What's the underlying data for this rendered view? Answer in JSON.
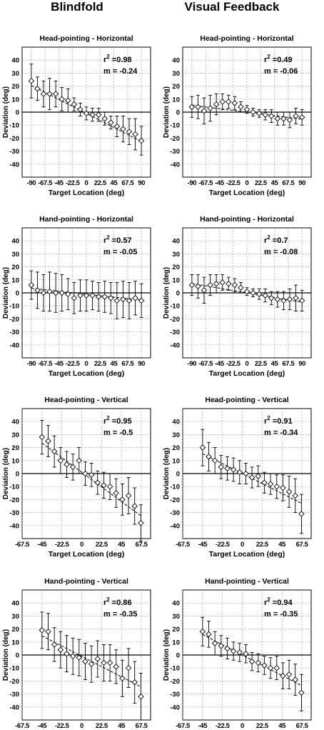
{
  "headers": {
    "left": "Blindfold",
    "right": "Visual Feedback"
  },
  "axes": {
    "xlabel": "Target Location (deg)",
    "ylabel": "Deviation (deg)",
    "ylim": [
      -50,
      50
    ],
    "yticks": [
      40,
      30,
      20,
      10,
      0,
      -10,
      -20,
      -30,
      -40
    ],
    "grid": true,
    "horizontal": {
      "xlim": [
        -105,
        105
      ],
      "ticks": [
        -90,
        -67.5,
        -45,
        -22.5,
        0,
        22.5,
        45,
        67.5,
        90
      ],
      "tick_labels": [
        "-90",
        "-67.5",
        "-45",
        "-22.5",
        "0",
        "22.5",
        "45",
        "67.5",
        "90"
      ]
    },
    "vertical": {
      "xlim": [
        -67.5,
        78
      ],
      "ticks": [
        -67.5,
        -45,
        -22.5,
        0,
        22.5,
        45,
        67.5
      ],
      "tick_labels": [
        "-67.5",
        "-45",
        "-22.5",
        "0",
        "22.5",
        "45",
        "67.5"
      ]
    }
  },
  "chart_data": [
    {
      "type": "scatter",
      "panel": "head-horizontal-blindfold",
      "axis": "horizontal",
      "title": "Head-pointing - Horizontal",
      "r2_label": "r",
      "r2_value": "=0.98",
      "slope_label": "m = -0.24",
      "fit": {
        "slope": -0.24,
        "intercept": -1
      },
      "x": [
        -90,
        -80,
        -70,
        -60,
        -50,
        -40,
        -30,
        -20,
        -10,
        0,
        10,
        20,
        30,
        40,
        50,
        60,
        70,
        80,
        90
      ],
      "y": [
        24,
        18,
        14,
        14,
        14,
        10,
        9,
        6,
        2,
        -1,
        -2,
        -2,
        -5,
        -8,
        -11,
        -13,
        -15,
        -17,
        -22
      ],
      "err": [
        13,
        9,
        10,
        12,
        10,
        9,
        9,
        5,
        5,
        5,
        5,
        5,
        5,
        5,
        8,
        10,
        10,
        12,
        11
      ]
    },
    {
      "type": "scatter",
      "panel": "head-horizontal-visual",
      "axis": "horizontal",
      "title": "Head-pointing - Horizontal",
      "r2_label": "r",
      "r2_value": "=0.49",
      "slope_label": "m = -0.06",
      "fit": {
        "slope": -0.06,
        "intercept": 0
      },
      "x": [
        -90,
        -80,
        -70,
        -60,
        -50,
        -40,
        -30,
        -20,
        -10,
        0,
        10,
        20,
        30,
        40,
        50,
        60,
        70,
        80,
        90
      ],
      "y": [
        4,
        4,
        1,
        3,
        6,
        8,
        8,
        7,
        4,
        2,
        0,
        -1,
        -2,
        -3,
        -5,
        -5,
        -6,
        -3,
        -4
      ],
      "err": [
        8,
        9,
        10,
        10,
        8,
        6,
        5,
        5,
        4,
        3,
        3,
        3,
        4,
        5,
        5,
        5,
        6,
        6,
        6
      ]
    },
    {
      "type": "scatter",
      "panel": "hand-horizontal-blindfold",
      "axis": "horizontal",
      "title": "Hand-pointing - Horizontal",
      "r2_label": "r",
      "r2_value": "=0.57",
      "slope_label": "m = -0.05",
      "fit": {
        "slope": -0.05,
        "intercept": -1
      },
      "x": [
        -90,
        -80,
        -70,
        -60,
        -50,
        -40,
        -30,
        -20,
        -10,
        0,
        10,
        20,
        30,
        40,
        50,
        60,
        70,
        80,
        90
      ],
      "y": [
        6,
        2,
        0,
        1,
        0,
        0,
        -1,
        -4,
        -2,
        -2,
        -2,
        -3,
        -3,
        -4,
        -6,
        -5,
        -6,
        -4,
        -6
      ],
      "err": [
        11,
        14,
        14,
        15,
        15,
        14,
        12,
        12,
        12,
        12,
        11,
        11,
        12,
        12,
        14,
        14,
        14,
        13,
        13
      ]
    },
    {
      "type": "scatter",
      "panel": "hand-horizontal-visual",
      "axis": "horizontal",
      "title": "Hand-pointing - Horizontal",
      "r2_label": "r",
      "r2_value": "=0.7",
      "slope_label": "m = -0.08",
      "fit": {
        "slope": -0.08,
        "intercept": 0
      },
      "x": [
        -90,
        -80,
        -70,
        -60,
        -50,
        -40,
        -30,
        -20,
        -10,
        0,
        10,
        20,
        30,
        40,
        50,
        60,
        70,
        80,
        90
      ],
      "y": [
        6,
        5,
        2,
        6,
        7,
        8,
        7,
        6,
        4,
        1,
        0,
        -1,
        -2,
        -4,
        -5,
        -6,
        -5,
        -4,
        -6
      ],
      "err": [
        8,
        9,
        10,
        8,
        7,
        6,
        5,
        5,
        4,
        3,
        3,
        4,
        5,
        5,
        6,
        7,
        8,
        10,
        8
      ]
    },
    {
      "type": "scatter",
      "panel": "head-vertical-blindfold",
      "axis": "vertical",
      "title": "Head-pointing - Vertical",
      "r2_label": "r",
      "r2_value": "=0.95",
      "slope_label": "m = -0.5",
      "fit": {
        "slope": -0.5,
        "intercept": 1
      },
      "x": [
        -45,
        -38,
        -31,
        -24,
        -17,
        -10,
        -3,
        4,
        11,
        18,
        25,
        32,
        39,
        46,
        53,
        60,
        67
      ],
      "y": [
        28,
        25,
        17,
        10,
        7,
        5,
        10,
        0,
        -1,
        -7,
        -9,
        -10,
        -15,
        -20,
        -17,
        -25,
        -38
      ],
      "err": [
        13,
        12,
        12,
        10,
        10,
        10,
        10,
        9,
        9,
        9,
        10,
        10,
        11,
        12,
        14,
        14,
        14
      ]
    },
    {
      "type": "scatter",
      "panel": "head-vertical-visual",
      "axis": "vertical",
      "title": "Head-pointing - Vertical",
      "r2_label": "r",
      "r2_value": "=0.91",
      "slope_label": "m = -0.34",
      "fit": {
        "slope": -0.34,
        "intercept": 0
      },
      "x": [
        -45,
        -38,
        -31,
        -24,
        -17,
        -10,
        -3,
        4,
        11,
        18,
        25,
        32,
        39,
        46,
        53,
        60,
        67
      ],
      "y": [
        20,
        13,
        10,
        5,
        4,
        3,
        1,
        0,
        -3,
        -2,
        -7,
        -8,
        -10,
        -11,
        -14,
        -17,
        -31
      ],
      "err": [
        14,
        11,
        10,
        9,
        9,
        9,
        9,
        8,
        8,
        8,
        8,
        8,
        9,
        10,
        12,
        13,
        15
      ]
    },
    {
      "type": "scatter",
      "panel": "hand-vertical-blindfold",
      "axis": "vertical",
      "title": "Hand-pointing - Vertical",
      "r2_label": "r",
      "r2_value": "=0.86",
      "slope_label": "m = -0.35",
      "fit": {
        "slope": -0.35,
        "intercept": -1
      },
      "x": [
        -45,
        -38,
        -31,
        -24,
        -17,
        -10,
        -3,
        4,
        11,
        18,
        25,
        32,
        39,
        46,
        53,
        60,
        67
      ],
      "y": [
        19,
        18,
        8,
        4,
        1,
        -1,
        -2,
        -5,
        -7,
        -3,
        -6,
        -6,
        -9,
        -18,
        -10,
        -21,
        -32
      ],
      "err": [
        14,
        14,
        13,
        14,
        14,
        14,
        14,
        14,
        14,
        14,
        14,
        14,
        13,
        14,
        15,
        16,
        18
      ]
    },
    {
      "type": "scatter",
      "panel": "hand-vertical-visual",
      "axis": "vertical",
      "title": "Hand-pointing - Vertical",
      "r2_label": "r",
      "r2_value": "=0.94",
      "slope_label": "m = -0.35",
      "fit": {
        "slope": -0.35,
        "intercept": 0
      },
      "x": [
        -45,
        -38,
        -31,
        -24,
        -17,
        -10,
        -3,
        4,
        11,
        18,
        25,
        32,
        39,
        46,
        53,
        60,
        67
      ],
      "y": [
        18,
        16,
        9,
        7,
        5,
        3,
        2,
        1,
        -5,
        -6,
        -8,
        -10,
        -10,
        -16,
        -15,
        -19,
        -29
      ],
      "err": [
        11,
        10,
        9,
        8,
        8,
        7,
        7,
        7,
        7,
        7,
        7,
        8,
        9,
        10,
        11,
        12,
        14
      ]
    }
  ]
}
